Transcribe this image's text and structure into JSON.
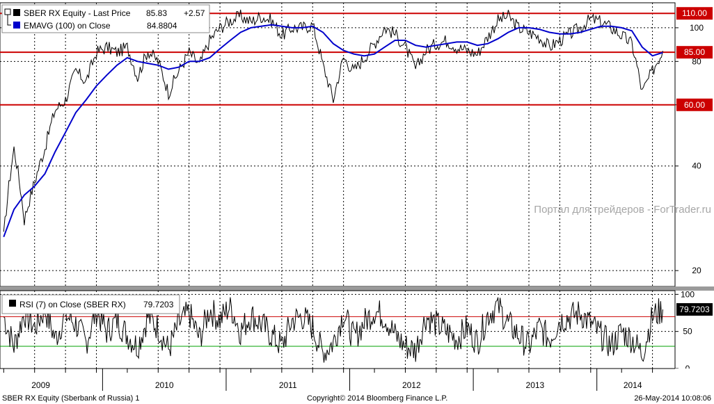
{
  "chart_data": [
    {
      "type": "line",
      "panel": "price",
      "y_scale": "log",
      "ylim": [
        18,
        118
      ],
      "y_ticks": [
        20,
        40,
        60,
        80,
        100
      ],
      "grid": true,
      "legend": {
        "placement": "top-left",
        "entries": [
          {
            "name": "SBER RX Equity - Last Price",
            "value": "85.83",
            "change": "+2.57",
            "color": "#000000"
          },
          {
            "name": "EMAVG (100) on Close",
            "value": "84.8804",
            "color": "#0000cc"
          }
        ]
      },
      "series": [
        {
          "name": "SBER RX Equity - Last Price",
          "color": "#000000",
          "x": [
            "2009-01",
            "2009-02",
            "2009-03",
            "2009-04",
            "2009-05",
            "2009-06",
            "2009-07",
            "2009-08",
            "2009-09",
            "2009-10",
            "2009-11",
            "2009-12",
            "2010-01",
            "2010-02",
            "2010-03",
            "2010-04",
            "2010-05",
            "2010-06",
            "2010-07",
            "2010-08",
            "2010-09",
            "2010-10",
            "2010-11",
            "2010-12",
            "2011-01",
            "2011-02",
            "2011-03",
            "2011-04",
            "2011-05",
            "2011-06",
            "2011-07",
            "2011-08",
            "2011-09",
            "2011-10",
            "2011-11",
            "2011-12",
            "2012-01",
            "2012-02",
            "2012-03",
            "2012-04",
            "2012-05",
            "2012-06",
            "2012-07",
            "2012-08",
            "2012-09",
            "2012-10",
            "2012-11",
            "2012-12",
            "2013-01",
            "2013-02",
            "2013-03",
            "2013-04",
            "2013-05",
            "2013-06",
            "2013-07",
            "2013-08",
            "2013-09",
            "2013-10",
            "2013-11",
            "2013-12",
            "2014-01",
            "2014-02",
            "2014-03",
            "2014-04",
            "2014-05"
          ],
          "values": [
            25,
            45,
            28,
            36,
            45,
            58,
            62,
            75,
            70,
            85,
            88,
            85,
            88,
            72,
            86,
            80,
            65,
            75,
            85,
            78,
            92,
            100,
            105,
            108,
            104,
            108,
            105,
            95,
            100,
            100,
            102,
            78,
            62,
            82,
            75,
            82,
            90,
            100,
            96,
            88,
            76,
            86,
            90,
            92,
            88,
            86,
            84,
            94,
            105,
            108,
            100,
            97,
            94,
            88,
            92,
            96,
            100,
            106,
            104,
            100,
            95,
            90,
            65,
            75,
            85.83
          ]
        },
        {
          "name": "EMAVG (100) on Close",
          "color": "#0000cc",
          "x": [
            "2009-01",
            "2009-02",
            "2009-03",
            "2009-04",
            "2009-05",
            "2009-06",
            "2009-07",
            "2009-08",
            "2009-09",
            "2009-10",
            "2009-11",
            "2009-12",
            "2010-01",
            "2010-02",
            "2010-03",
            "2010-04",
            "2010-05",
            "2010-06",
            "2010-07",
            "2010-08",
            "2010-09",
            "2010-10",
            "2010-11",
            "2010-12",
            "2011-01",
            "2011-02",
            "2011-03",
            "2011-04",
            "2011-05",
            "2011-06",
            "2011-07",
            "2011-08",
            "2011-09",
            "2011-10",
            "2011-11",
            "2011-12",
            "2012-01",
            "2012-02",
            "2012-03",
            "2012-04",
            "2012-05",
            "2012-06",
            "2012-07",
            "2012-08",
            "2012-09",
            "2012-10",
            "2012-11",
            "2012-12",
            "2013-01",
            "2013-02",
            "2013-03",
            "2013-04",
            "2013-05",
            "2013-06",
            "2013-07",
            "2013-08",
            "2013-09",
            "2013-10",
            "2013-11",
            "2013-12",
            "2014-01",
            "2014-02",
            "2014-03",
            "2014-04",
            "2014-05"
          ],
          "values": [
            25,
            30,
            33,
            35,
            38,
            44,
            50,
            57,
            62,
            68,
            73,
            78,
            82,
            80,
            79,
            78,
            76,
            77,
            80,
            80,
            82,
            87,
            92,
            97,
            100,
            101,
            102,
            101,
            100,
            100,
            101,
            97,
            90,
            86,
            84,
            83,
            84,
            88,
            92,
            92,
            89,
            88,
            89,
            90,
            91,
            91,
            89,
            90,
            93,
            97,
            100,
            100,
            99,
            97,
            96,
            96,
            97,
            99,
            101,
            101,
            100,
            98,
            88,
            83,
            84.88
          ]
        }
      ],
      "reference_lines": [
        {
          "value": 110,
          "label": "110.00",
          "color": "#cc0000"
        },
        {
          "value": 85,
          "label": "85.00",
          "color": "#cc0000"
        },
        {
          "value": 60,
          "label": "60.00",
          "color": "#cc0000"
        }
      ]
    },
    {
      "type": "line",
      "panel": "indicator",
      "ylim": [
        0,
        105
      ],
      "y_ticks": [
        0,
        50,
        100
      ],
      "grid": true,
      "legend": {
        "placement": "top-left",
        "entries": [
          {
            "name": "RSI (7) on Close (SBER RX)",
            "value": "79.7203",
            "color": "#000000"
          }
        ]
      },
      "series": [
        {
          "name": "RSI (7) on Close (SBER RX)",
          "color": "#000000",
          "x": [
            "2009-01",
            "2009-02",
            "2009-03",
            "2009-04",
            "2009-05",
            "2009-06",
            "2009-07",
            "2009-08",
            "2009-09",
            "2009-10",
            "2009-11",
            "2009-12",
            "2010-01",
            "2010-02",
            "2010-03",
            "2010-04",
            "2010-05",
            "2010-06",
            "2010-07",
            "2010-08",
            "2010-09",
            "2010-10",
            "2010-11",
            "2010-12",
            "2011-01",
            "2011-02",
            "2011-03",
            "2011-04",
            "2011-05",
            "2011-06",
            "2011-07",
            "2011-08",
            "2011-09",
            "2011-10",
            "2011-11",
            "2011-12",
            "2012-01",
            "2012-02",
            "2012-03",
            "2012-04",
            "2012-05",
            "2012-06",
            "2012-07",
            "2012-08",
            "2012-09",
            "2012-10",
            "2012-11",
            "2012-12",
            "2013-01",
            "2013-02",
            "2013-03",
            "2013-04",
            "2013-05",
            "2013-06",
            "2013-07",
            "2013-08",
            "2013-09",
            "2013-10",
            "2013-11",
            "2013-12",
            "2014-01",
            "2014-02",
            "2014-03",
            "2014-04",
            "2014-05"
          ],
          "values": [
            70,
            30,
            75,
            55,
            80,
            40,
            72,
            60,
            35,
            78,
            50,
            65,
            45,
            30,
            70,
            55,
            25,
            60,
            75,
            40,
            80,
            65,
            85,
            50,
            72,
            60,
            45,
            30,
            65,
            70,
            55,
            20,
            35,
            75,
            40,
            62,
            78,
            70,
            45,
            30,
            25,
            70,
            60,
            50,
            40,
            55,
            35,
            72,
            85,
            60,
            45,
            30,
            55,
            40,
            65,
            70,
            75,
            60,
            45,
            30,
            50,
            40,
            20,
            70,
            79.72
          ]
        }
      ],
      "reference_lines": [
        {
          "value": 70,
          "label": "",
          "color": "#cc0000"
        },
        {
          "value": 30,
          "label": "",
          "color": "#00a000"
        }
      ],
      "current_label": "79.7203"
    }
  ],
  "x_axis": {
    "labels": [
      "2009",
      "2010",
      "2011",
      "2012",
      "2013",
      "2014"
    ]
  },
  "watermark": "Портал для трейдеров - ForTrader.ru",
  "footer": {
    "left": "SBER RX Equity (Sberbank of Russia) 1",
    "center": "Copyright© 2014 Bloomberg Finance L.P.",
    "right": "26-May-2014 10:08:06"
  },
  "colors": {
    "price_line": "#000000",
    "ema_line": "#0000cc",
    "resistance": "#cc0000",
    "rsi_upper": "#cc0000",
    "rsi_lower": "#00a000",
    "grid": "#000000"
  }
}
